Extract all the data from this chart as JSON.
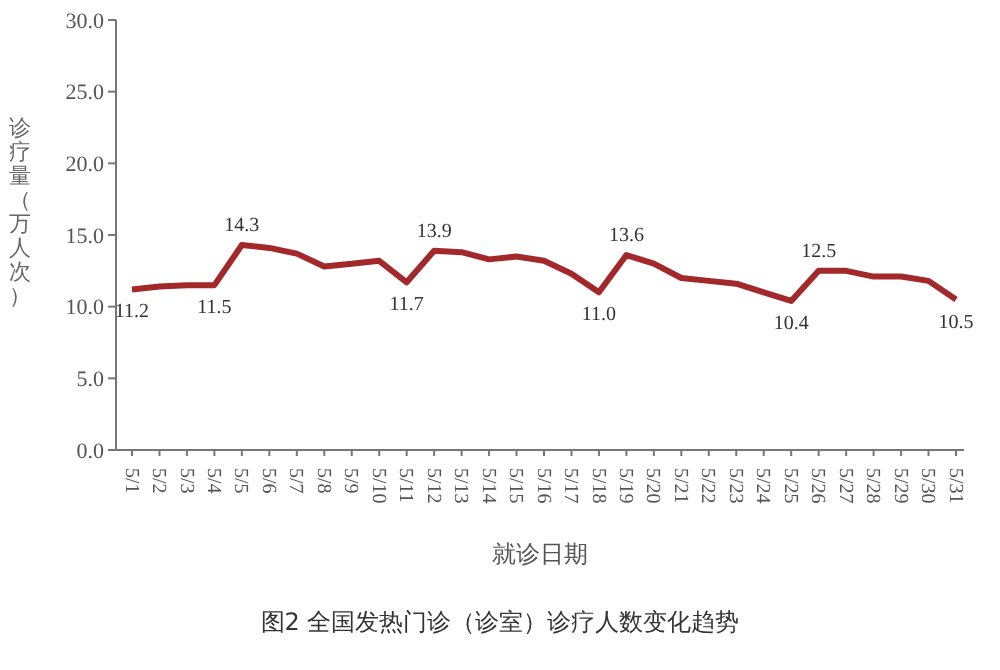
{
  "chart_data": {
    "type": "line",
    "xlabel": "就诊日期",
    "ylabel": "诊疗量（万人次）",
    "categories": [
      "5/1",
      "5/2",
      "5/3",
      "5/4",
      "5/5",
      "5/6",
      "5/7",
      "5/8",
      "5/9",
      "5/10",
      "5/11",
      "5/12",
      "5/13",
      "5/14",
      "5/15",
      "5/16",
      "5/17",
      "5/18",
      "5/19",
      "5/20",
      "5/21",
      "5/22",
      "5/23",
      "5/24",
      "5/25",
      "5/26",
      "5/27",
      "5/28",
      "5/29",
      "5/30",
      "5/31"
    ],
    "series": [
      {
        "color": "#a3282a",
        "values": [
          11.2,
          11.4,
          11.5,
          11.5,
          14.3,
          14.1,
          13.7,
          12.8,
          13.0,
          13.2,
          11.7,
          13.9,
          13.8,
          13.3,
          13.5,
          13.2,
          12.3,
          11.0,
          13.6,
          13.0,
          12.0,
          11.8,
          11.6,
          11.0,
          10.4,
          12.5,
          12.5,
          12.1,
          12.1,
          11.8,
          10.5
        ],
        "value_labels": [
          "11.2",
          null,
          null,
          "11.5",
          "14.3",
          null,
          null,
          null,
          null,
          null,
          "11.7",
          "13.9",
          null,
          null,
          null,
          null,
          null,
          "11.0",
          "13.6",
          null,
          null,
          null,
          null,
          null,
          "10.4",
          "12.5",
          null,
          null,
          null,
          null,
          "10.5"
        ]
      }
    ],
    "ylim": [
      0,
      30
    ],
    "yticks": [
      {
        "value": 0,
        "label": "0.0"
      },
      {
        "value": 5,
        "label": "5.0"
      },
      {
        "value": 10,
        "label": "10.0"
      },
      {
        "value": 15,
        "label": "15.0"
      },
      {
        "value": 20,
        "label": "20.0"
      },
      {
        "value": 25,
        "label": "25.0"
      },
      {
        "value": 30,
        "label": "30.0"
      }
    ],
    "grid": false,
    "legend": false,
    "marker": "none",
    "line_style": "solid",
    "annotations": [
      "图2 全国发热门诊（诊室）诊疗人数变化趋势"
    ]
  }
}
